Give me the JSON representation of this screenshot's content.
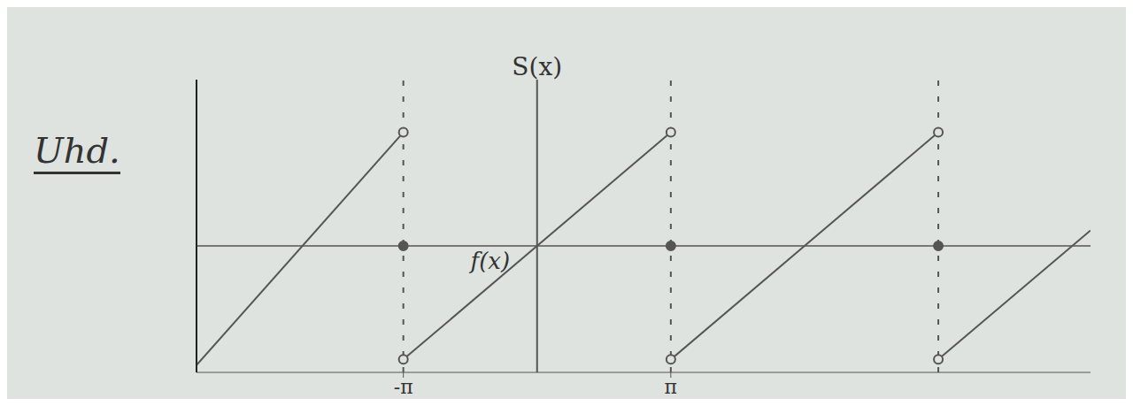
{
  "chart_data": {
    "type": "line",
    "title": "Uhd.",
    "y_label": "S(x)",
    "color": "#555555",
    "xlim": [
      -8,
      13
    ],
    "ylim": [
      -3.5,
      4.6
    ],
    "xticks": [
      {
        "value": -3.1416,
        "label": "-π"
      },
      {
        "value": 3.1416,
        "label": "π"
      }
    ],
    "yticks": [],
    "tick_labels": "x",
    "grid": false,
    "annotations": [
      {
        "text": "f(x)",
        "x": -1.1,
        "y": -0.4
      }
    ],
    "series": [
      {
        "type": "line",
        "x": [
          -8,
          -3.1416
        ],
        "values": [
          -3.3,
          3.1416
        ]
      },
      {
        "type": "line",
        "x": [
          -3.1416,
          3.1416
        ],
        "values": [
          -3.1416,
          3.1416
        ]
      },
      {
        "type": "line",
        "x": [
          3.1416,
          9.4248
        ],
        "values": [
          -3.1416,
          3.1416
        ]
      },
      {
        "type": "line",
        "x": [
          9.4248,
          13
        ],
        "values": [
          -3.1416,
          0.43
        ]
      },
      {
        "type": "scatter",
        "marker": "open circle",
        "x": [
          -3.1416,
          -3.1416,
          3.1416,
          3.1416,
          9.4248,
          9.4248
        ],
        "values": [
          3.1416,
          -3.1416,
          3.1416,
          -3.1416,
          3.1416,
          -3.1416
        ]
      },
      {
        "type": "scatter",
        "marker": "filled circle",
        "x": [
          -3.1416,
          3.1416,
          9.4248
        ],
        "values": [
          0,
          0,
          0
        ]
      }
    ]
  }
}
